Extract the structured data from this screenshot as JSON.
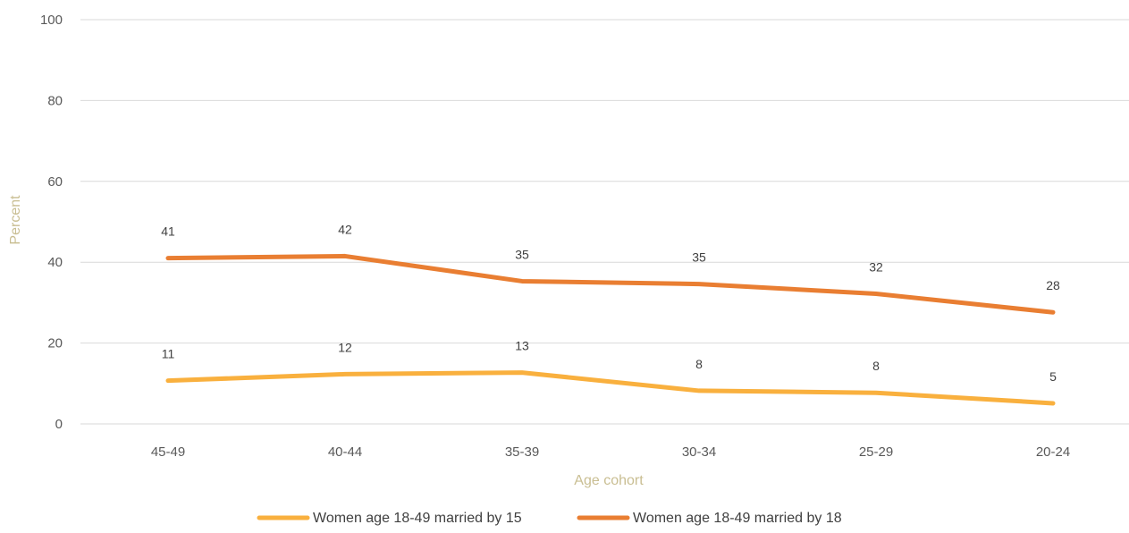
{
  "chart_data": {
    "type": "line",
    "categories": [
      "45-49",
      "40-44",
      "35-39",
      "30-34",
      "25-29",
      "20-24"
    ],
    "series": [
      {
        "name": "Women age 18-49 married by 15",
        "values": [
          10.7,
          12.3,
          12.7,
          8.2,
          7.7,
          5.1
        ],
        "labels": [
          "11",
          "12",
          "13",
          "8",
          "8",
          "5"
        ],
        "color": "#F9B03E"
      },
      {
        "name": "Women age 18-49 married by 18",
        "values": [
          41.0,
          41.5,
          35.3,
          34.6,
          32.2,
          27.6
        ],
        "labels": [
          "41",
          "42",
          "35",
          "35",
          "32",
          "28"
        ],
        "color": "#E97E32"
      }
    ],
    "xlabel": "Age cohort",
    "ylabel": "Percent",
    "ylim": [
      0,
      100
    ],
    "yticks": [
      "0",
      "20",
      "40",
      "60",
      "80",
      "100"
    ],
    "grid": true,
    "legend_position": "bottom",
    "axis_title_color": "#C9BE92",
    "gridline_color": "#D9D9D9"
  }
}
